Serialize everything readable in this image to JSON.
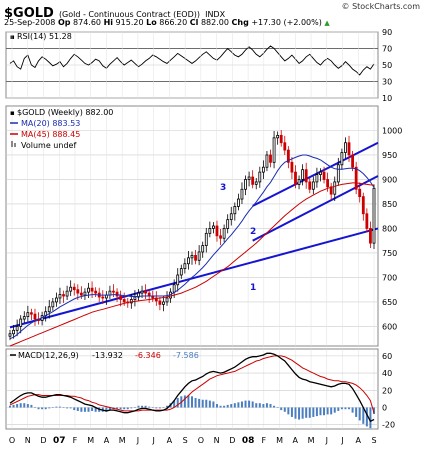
{
  "header": {
    "symbol": "$GOLD",
    "description": "(Gold - Continuous Contract (EOD))",
    "exchange": "INDX",
    "brand": "© StockCharts.com",
    "date": "25-Sep-2008",
    "open_label": "Op",
    "open": "874.60",
    "high_label": "Hi",
    "high": "915.20",
    "low_label": "Lo",
    "low": "866.20",
    "close_label": "Cl",
    "close": "882.00",
    "change_label": "Chg",
    "change": "+17.30 (+2.00%)",
    "change_arrow": "▲"
  },
  "colors": {
    "up_candle": "#000000",
    "down_candle": "#cc0000",
    "ma20": "#1a2db0",
    "ma45": "#cc0000",
    "trendline": "#1414d2",
    "volume": "#3060b0",
    "macd_line": "#000000",
    "signal_line": "#cc0000",
    "histogram": "#4a7ec0",
    "grid": "#cccccc"
  },
  "chart_data": [
    {
      "type": "line",
      "name": "rsi-panel",
      "legend": "RSI(14) 51.28",
      "ylim": [
        10,
        90
      ],
      "y_ticks": [
        "90",
        "70",
        "50",
        "30",
        "10"
      ],
      "reference_lines": [
        30,
        70
      ],
      "values": [
        52,
        55,
        48,
        45,
        58,
        62,
        50,
        47,
        55,
        60,
        57,
        53,
        49,
        51,
        54,
        48,
        52,
        58,
        63,
        60,
        56,
        52,
        50,
        53,
        57,
        55,
        49,
        46,
        51,
        55,
        59,
        54,
        50,
        53,
        56,
        52,
        48,
        51,
        55,
        58,
        62,
        60,
        57,
        54,
        52,
        56,
        60,
        64,
        61,
        58,
        55,
        52,
        55,
        59,
        63,
        66,
        62,
        58,
        56,
        60,
        65,
        70,
        66,
        62,
        60,
        63,
        68,
        72,
        68,
        63,
        60,
        64,
        69,
        73,
        70,
        65,
        60,
        55,
        58,
        62,
        57,
        52,
        55,
        60,
        63,
        58,
        53,
        50,
        55,
        58,
        55,
        50,
        46,
        49,
        54,
        50,
        45,
        42,
        38,
        44,
        48,
        45,
        51.28
      ]
    },
    {
      "type": "candlestick",
      "name": "price-panel",
      "legend": {
        "main": "$GOLD (Weekly) 882.00",
        "ma20": "MA(20) 883.53",
        "ma45": "MA(45) 888.45",
        "volume": "Volume undef"
      },
      "ylim": [
        560,
        1050
      ],
      "y_ticks": [
        "1000",
        "950",
        "900",
        "850",
        "800",
        "750",
        "700",
        "650",
        "600"
      ],
      "x_labels": [
        "O",
        "N",
        "D",
        "07",
        "F",
        "M",
        "A",
        "M",
        "J",
        "J",
        "A",
        "S",
        "O",
        "N",
        "D",
        "08",
        "F",
        "M",
        "A",
        "M",
        "J",
        "J",
        "A",
        "S"
      ],
      "close": [
        585,
        592,
        600,
        615,
        620,
        628,
        625,
        615,
        612,
        622,
        630,
        640,
        650,
        658,
        665,
        662,
        672,
        680,
        675,
        668,
        664,
        670,
        678,
        672,
        668,
        660,
        658,
        664,
        672,
        670,
        662,
        655,
        650,
        648,
        655,
        660,
        668,
        672,
        668,
        662,
        658,
        652,
        645,
        650,
        658,
        670,
        685,
        705,
        718,
        728,
        740,
        745,
        735,
        752,
        765,
        790,
        800,
        805,
        785,
        780,
        800,
        818,
        830,
        845,
        860,
        880,
        900,
        905,
        890,
        895,
        915,
        925,
        950,
        935,
        985,
        990,
        975,
        960,
        935,
        915,
        890,
        900,
        920,
        895,
        880,
        895,
        910,
        915,
        900,
        885,
        870,
        895,
        930,
        955,
        975,
        950,
        925,
        880,
        865,
        830,
        800,
        770,
        882
      ],
      "ma20": [
        575,
        578,
        583,
        590,
        596,
        602,
        607,
        611,
        614,
        618,
        622,
        626,
        630,
        635,
        640,
        644,
        648,
        652,
        656,
        659,
        661,
        663,
        664,
        665,
        665,
        664,
        664,
        664,
        664,
        665,
        665,
        664,
        663,
        662,
        661,
        661,
        661,
        662,
        662,
        662,
        662,
        662,
        662,
        662,
        663,
        665,
        669,
        674,
        680,
        686,
        693,
        700,
        706,
        713,
        720,
        728,
        737,
        746,
        754,
        762,
        770,
        779,
        787,
        796,
        805,
        815,
        826,
        836,
        845,
        854,
        864,
        874,
        885,
        894,
        906,
        918,
        928,
        935,
        939,
        942,
        945,
        948,
        950,
        950,
        948,
        945,
        943,
        940,
        935,
        930,
        925,
        922,
        921,
        921,
        922,
        923,
        923,
        922,
        918,
        912,
        904,
        895,
        883.53
      ],
      "ma45": [
        560,
        563,
        566,
        569,
        572,
        575,
        578,
        581,
        584,
        587,
        590,
        593,
        596,
        599,
        602,
        605,
        608,
        611,
        614,
        617,
        620,
        623,
        626,
        629,
        631,
        633,
        635,
        637,
        639,
        641,
        643,
        645,
        647,
        649,
        650,
        651,
        652,
        653,
        654,
        655,
        656,
        657,
        658,
        659,
        660,
        662,
        664,
        666,
        668,
        671,
        674,
        677,
        680,
        684,
        688,
        692,
        697,
        702,
        707,
        712,
        717,
        722,
        728,
        734,
        740,
        746,
        752,
        758,
        764,
        770,
        777,
        784,
        791,
        798,
        805,
        812,
        819,
        826,
        832,
        838,
        844,
        850,
        855,
        860,
        864,
        868,
        872,
        876,
        879,
        882,
        884,
        886,
        888,
        890,
        891,
        892,
        893,
        893,
        892,
        891,
        890,
        889,
        888.45
      ],
      "trendlines": [
        {
          "label": "1",
          "from": [
            0,
            598
          ],
          "to": [
            115,
            800
          ]
        },
        {
          "label": "2",
          "from": [
            68,
            775
          ],
          "to": [
            115,
            907
          ]
        },
        {
          "label": "3",
          "from": [
            68,
            846
          ],
          "to": [
            115,
            975
          ]
        }
      ]
    },
    {
      "type": "line",
      "name": "macd-panel",
      "legend": {
        "name": "MACD(12,26,9)",
        "macd": "-13.932",
        "signal": "-6.346",
        "hist": "-7.586"
      },
      "ylim": [
        -25,
        68
      ],
      "y_ticks": [
        "60",
        "40",
        "20",
        "0",
        "-20"
      ],
      "macd": [
        5,
        8,
        11,
        14,
        16,
        17,
        17,
        15,
        13,
        12,
        12,
        13,
        14,
        15,
        15,
        14,
        13,
        12,
        10,
        8,
        6,
        4,
        3,
        2,
        0,
        -2,
        -3,
        -4,
        -3,
        -3,
        -4,
        -5,
        -6,
        -6,
        -5,
        -4,
        -2,
        -1,
        -1,
        -2,
        -3,
        -4,
        -4,
        -3,
        -1,
        3,
        8,
        14,
        19,
        24,
        28,
        31,
        32,
        34,
        36,
        39,
        41,
        42,
        41,
        40,
        41,
        43,
        45,
        47,
        50,
        53,
        56,
        58,
        59,
        59,
        60,
        61,
        63,
        63,
        62,
        60,
        57,
        54,
        49,
        44,
        39,
        35,
        33,
        32,
        30,
        29,
        28,
        27,
        26,
        25,
        24,
        25,
        27,
        28,
        28,
        27,
        22,
        15,
        8,
        0,
        -8,
        -16,
        -13.932
      ],
      "signal": [
        3,
        5,
        7,
        9,
        11,
        13,
        14,
        15,
        15,
        14,
        14,
        14,
        14,
        14,
        14,
        14,
        14,
        13,
        13,
        12,
        11,
        9,
        8,
        6,
        5,
        3,
        2,
        1,
        0,
        -1,
        -2,
        -3,
        -4,
        -4,
        -4,
        -4,
        -4,
        -3,
        -3,
        -3,
        -3,
        -3,
        -3,
        -3,
        -3,
        -2,
        0,
        3,
        6,
        10,
        14,
        18,
        21,
        24,
        27,
        30,
        33,
        35,
        37,
        38,
        39,
        40,
        41,
        42,
        44,
        46,
        48,
        50,
        52,
        54,
        55,
        57,
        58,
        59,
        60,
        60,
        60,
        59,
        57,
        55,
        52,
        49,
        46,
        44,
        42,
        40,
        38,
        36,
        35,
        33,
        32,
        31,
        31,
        30,
        30,
        29,
        28,
        26,
        23,
        19,
        14,
        8,
        -6.346
      ]
    }
  ]
}
